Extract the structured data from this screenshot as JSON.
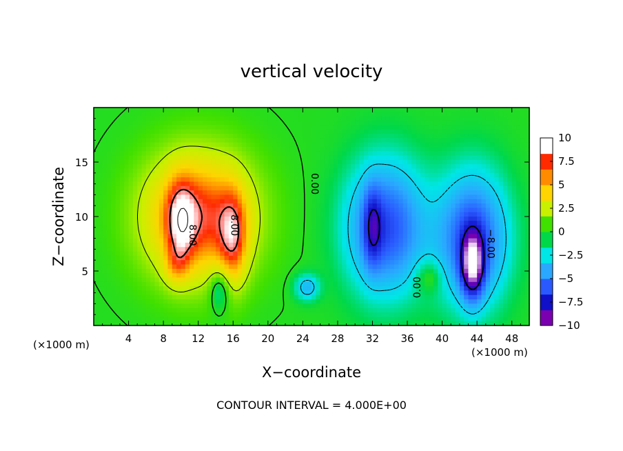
{
  "chart_data": {
    "type": "heatmap",
    "title": "vertical velocity",
    "xlabel": "X−coordinate",
    "ylabel": "Z−coordinate",
    "x_unit_label": "(×1000 m)",
    "xlim": [
      0,
      50
    ],
    "ylim": [
      0,
      20
    ],
    "x_ticks": [
      4,
      8,
      12,
      16,
      20,
      24,
      28,
      32,
      36,
      40,
      44,
      48
    ],
    "y_ticks": [
      5,
      10,
      15
    ],
    "colorbar": {
      "range": [
        -10,
        10
      ],
      "ticks": [
        10,
        7.5,
        5,
        2.5,
        0,
        -2.5,
        -5,
        -7.5,
        -10
      ],
      "tick_labels": [
        "10",
        "7.5",
        "5",
        "2.5",
        "0",
        "−2.5",
        "−5",
        "−7.5",
        "−10"
      ],
      "colors": [
        "#7a00b0",
        "#1010c8",
        "#2a5aff",
        "#2aa8ff",
        "#00e6e6",
        "#00d84a",
        "#40e000",
        "#c8f000",
        "#ffd400",
        "#ff8c00",
        "#ff2a00",
        "#ffffff"
      ]
    },
    "contour_interval_text": "CONTOUR INTERVAL = 4.000E+00",
    "contour_labels": [
      "8.00",
      "8.00",
      "0.00",
      "0.00",
      "−8.00"
    ],
    "features": [
      {
        "name": "updraft-left",
        "x": 10,
        "z": 9,
        "peak": 12
      },
      {
        "name": "updraft-right",
        "x": 16,
        "z": 8.5,
        "peak": 12
      },
      {
        "name": "downdraft-left",
        "x": 33,
        "z": 9,
        "peak": -9
      },
      {
        "name": "downdraft-right",
        "x": 43.5,
        "z": 6.5,
        "peak": -12
      },
      {
        "name": "weak-downdraft",
        "x": 24.5,
        "z": 3.5,
        "peak": -3.5
      }
    ]
  }
}
